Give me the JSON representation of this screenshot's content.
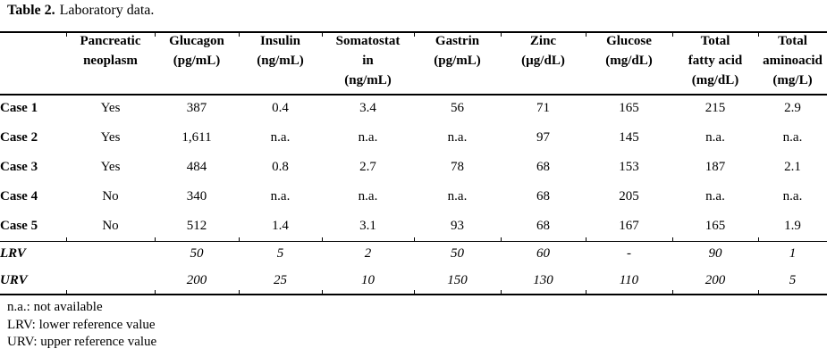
{
  "colors": {
    "text": "#000000",
    "background": "#ffffff",
    "rules": "#000000"
  },
  "title": {
    "number": "Table 2.",
    "caption": "Laboratory data."
  },
  "table": {
    "columns": [
      {
        "key": "case",
        "lines": []
      },
      {
        "key": "pancreatic-neoplasm",
        "lines": [
          "Pancreatic",
          "neoplasm"
        ]
      },
      {
        "key": "glucagon",
        "lines": [
          "Glucagon",
          "(pg/mL)"
        ]
      },
      {
        "key": "insulin",
        "lines": [
          "Insulin",
          "(ng/mL)"
        ]
      },
      {
        "key": "somatostatin",
        "lines": [
          "Somatostat",
          "in",
          "(ng/mL)"
        ]
      },
      {
        "key": "gastrin",
        "lines": [
          "Gastrin",
          "(pg/mL)"
        ]
      },
      {
        "key": "zinc",
        "lines": [
          "Zinc",
          "(µg/dL)"
        ]
      },
      {
        "key": "glucose",
        "lines": [
          "Glucose",
          "(mg/dL)"
        ]
      },
      {
        "key": "total-fatty-acid",
        "lines": [
          "Total",
          "fatty acid",
          "(mg/dL)"
        ]
      },
      {
        "key": "total-aminoacid",
        "lines": [
          "Total",
          "aminoacid",
          "(mg/L)"
        ]
      }
    ],
    "rows": [
      {
        "label": "Case 1",
        "values": [
          "Yes",
          "387",
          "0.4",
          "3.4",
          "56",
          "71",
          "165",
          "215",
          "2.9"
        ]
      },
      {
        "label": "Case 2",
        "values": [
          "Yes",
          "1,611",
          "n.a.",
          "n.a.",
          "n.a.",
          "97",
          "145",
          "n.a.",
          "n.a."
        ]
      },
      {
        "label": "Case 3",
        "values": [
          "Yes",
          "484",
          "0.8",
          "2.7",
          "78",
          "68",
          "153",
          "187",
          "2.1"
        ]
      },
      {
        "label": "Case 4",
        "values": [
          "No",
          "340",
          "n.a.",
          "n.a.",
          "n.a.",
          "68",
          "205",
          "n.a.",
          "n.a."
        ]
      },
      {
        "label": "Case 5",
        "values": [
          "No",
          "512",
          "1.4",
          "3.1",
          "93",
          "68",
          "167",
          "165",
          "1.9"
        ]
      }
    ],
    "reference_rows": [
      {
        "label": "LRV",
        "values": [
          "",
          "50",
          "5",
          "2",
          "50",
          "60",
          "-",
          "90",
          "1"
        ]
      },
      {
        "label": "URV",
        "values": [
          "",
          "200",
          "25",
          "10",
          "150",
          "130",
          "110",
          "200",
          "5"
        ]
      }
    ]
  },
  "footnotes": [
    "n.a.: not available",
    "LRV: lower reference value",
    "URV: upper reference value"
  ]
}
